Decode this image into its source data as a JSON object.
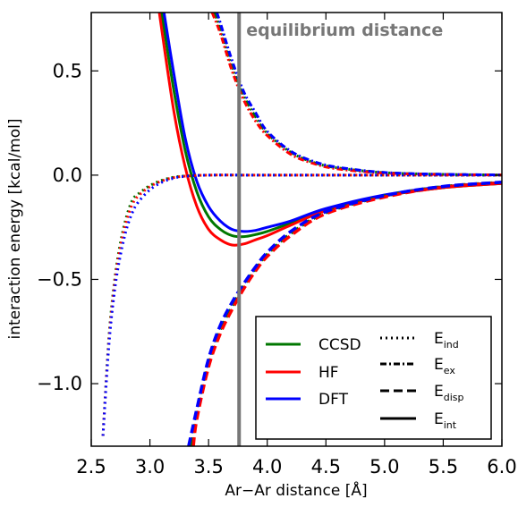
{
  "chart_data": {
    "type": "line",
    "title": "",
    "xlabel": "Ar−Ar distance  [Å]",
    "ylabel": "interaction energy  [kcal/mol]",
    "xlim": [
      2.5,
      6.0
    ],
    "ylim": [
      -1.3,
      0.78
    ],
    "xticks": [
      2.5,
      3.0,
      3.5,
      4.0,
      4.5,
      5.0,
      5.5,
      6.0
    ],
    "xtick_labels": [
      "2.5",
      "3.0",
      "3.5",
      "4.0",
      "4.5",
      "5.0",
      "5.5",
      "6.0"
    ],
    "yticks": [
      0.5,
      0.0,
      -0.5,
      -1.0
    ],
    "ytick_labels": [
      "0.5",
      "0.0",
      "−0.5",
      "−1.0"
    ],
    "grid": false,
    "legend_position": "bottom-right",
    "methods": [
      {
        "name": "CCSD",
        "color": "#007700"
      },
      {
        "name": "HF",
        "color": "#ff0000"
      },
      {
        "name": "DFT",
        "color": "#0000ff"
      }
    ],
    "components": [
      {
        "name": "E",
        "sub": "ind",
        "style": "dotted"
      },
      {
        "name": "E",
        "sub": "ex",
        "style": "dashdot"
      },
      {
        "name": "E",
        "sub": "disp",
        "style": "dashed"
      },
      {
        "name": "E",
        "sub": "int",
        "style": "solid"
      }
    ],
    "vline": {
      "x": 3.76,
      "label": "equilibrium distance",
      "color": "#777777"
    },
    "series": [
      {
        "method": "CCSD",
        "component": "int",
        "color": "#007700",
        "style": "solid",
        "x": [
          3.1,
          3.2,
          3.3,
          3.4,
          3.5,
          3.6,
          3.7,
          3.8,
          3.9,
          4.0,
          4.2,
          4.5,
          5.0,
          5.5,
          6.0
        ],
        "y": [
          0.78,
          0.42,
          0.12,
          -0.08,
          -0.2,
          -0.26,
          -0.29,
          -0.295,
          -0.285,
          -0.27,
          -0.23,
          -0.17,
          -0.1,
          -0.06,
          -0.04
        ]
      },
      {
        "method": "HF",
        "component": "int",
        "color": "#ff0000",
        "style": "solid",
        "x": [
          3.08,
          3.2,
          3.3,
          3.4,
          3.5,
          3.6,
          3.7,
          3.8,
          3.9,
          4.0,
          4.2,
          4.5,
          5.0,
          5.5,
          6.0
        ],
        "y": [
          0.78,
          0.32,
          0.04,
          -0.15,
          -0.26,
          -0.31,
          -0.335,
          -0.33,
          -0.31,
          -0.29,
          -0.24,
          -0.17,
          -0.1,
          -0.06,
          -0.04
        ]
      },
      {
        "method": "DFT",
        "component": "int",
        "color": "#0000ff",
        "style": "solid",
        "x": [
          3.12,
          3.2,
          3.3,
          3.4,
          3.5,
          3.6,
          3.7,
          3.8,
          3.9,
          4.0,
          4.2,
          4.5,
          5.0,
          5.5,
          6.0
        ],
        "y": [
          0.78,
          0.5,
          0.18,
          -0.03,
          -0.15,
          -0.22,
          -0.26,
          -0.27,
          -0.265,
          -0.25,
          -0.22,
          -0.16,
          -0.095,
          -0.055,
          -0.035
        ]
      },
      {
        "method": "CCSD",
        "component": "ind",
        "color": "#007700",
        "style": "dotted",
        "x": [
          2.6,
          2.65,
          2.7,
          2.75,
          2.8,
          2.85,
          2.9,
          3.0,
          3.1,
          3.2,
          3.3,
          3.5,
          4.0,
          5.0,
          6.0
        ],
        "y": [
          -1.25,
          -0.78,
          -0.5,
          -0.32,
          -0.2,
          -0.12,
          -0.09,
          -0.05,
          -0.025,
          -0.01,
          -0.004,
          0.0,
          0.0,
          0.0,
          0.0
        ]
      },
      {
        "method": "HF",
        "component": "ind",
        "color": "#ff0000",
        "style": "dotted",
        "x": [
          2.6,
          2.65,
          2.7,
          2.75,
          2.8,
          2.85,
          2.9,
          3.0,
          3.1,
          3.2,
          3.3,
          3.5,
          4.0,
          5.0,
          6.0
        ],
        "y": [
          -1.25,
          -0.8,
          -0.52,
          -0.34,
          -0.22,
          -0.14,
          -0.1,
          -0.055,
          -0.028,
          -0.012,
          -0.005,
          0.0,
          0.0,
          0.0,
          0.0
        ]
      },
      {
        "method": "DFT",
        "component": "ind",
        "color": "#0000ff",
        "style": "dotted",
        "x": [
          2.6,
          2.65,
          2.7,
          2.75,
          2.8,
          2.85,
          2.9,
          3.0,
          3.1,
          3.2,
          3.3,
          3.5,
          4.0,
          5.0,
          6.0
        ],
        "y": [
          -1.25,
          -0.82,
          -0.55,
          -0.38,
          -0.26,
          -0.18,
          -0.13,
          -0.07,
          -0.035,
          -0.015,
          -0.006,
          0.0,
          0.0,
          0.0,
          0.0
        ]
      },
      {
        "method": "CCSD",
        "component": "ex",
        "color": "#007700",
        "style": "dashdot",
        "x": [
          3.55,
          3.6,
          3.7,
          3.8,
          3.9,
          4.0,
          4.2,
          4.4,
          4.6,
          5.0,
          5.5,
          6.0
        ],
        "y": [
          0.78,
          0.7,
          0.52,
          0.38,
          0.28,
          0.2,
          0.11,
          0.06,
          0.035,
          0.012,
          0.004,
          0.001
        ]
      },
      {
        "method": "HF",
        "component": "ex",
        "color": "#ff0000",
        "style": "dashdot",
        "x": [
          3.53,
          3.6,
          3.7,
          3.8,
          3.9,
          4.0,
          4.2,
          4.4,
          4.6,
          5.0,
          5.5,
          6.0
        ],
        "y": [
          0.78,
          0.68,
          0.5,
          0.36,
          0.26,
          0.19,
          0.1,
          0.055,
          0.03,
          0.01,
          0.003,
          0.001
        ]
      },
      {
        "method": "DFT",
        "component": "ex",
        "color": "#0000ff",
        "style": "dashdot",
        "x": [
          3.57,
          3.6,
          3.7,
          3.8,
          3.9,
          4.0,
          4.2,
          4.4,
          4.6,
          5.0,
          5.5,
          6.0
        ],
        "y": [
          0.78,
          0.73,
          0.55,
          0.4,
          0.3,
          0.21,
          0.115,
          0.065,
          0.038,
          0.013,
          0.004,
          0.001
        ]
      },
      {
        "method": "CCSD",
        "component": "disp",
        "color": "#007700",
        "style": "dashed",
        "x": [
          3.35,
          3.4,
          3.5,
          3.6,
          3.7,
          3.8,
          3.9,
          4.0,
          4.2,
          4.5,
          5.0,
          5.5,
          6.0
        ],
        "y": [
          -1.3,
          -1.14,
          -0.9,
          -0.74,
          -0.63,
          -0.53,
          -0.45,
          -0.38,
          -0.28,
          -0.18,
          -0.1,
          -0.055,
          -0.035
        ]
      },
      {
        "method": "HF",
        "component": "disp",
        "color": "#ff0000",
        "style": "dashed",
        "x": [
          3.37,
          3.4,
          3.5,
          3.6,
          3.7,
          3.8,
          3.9,
          4.0,
          4.2,
          4.5,
          5.0,
          5.5,
          6.0
        ],
        "y": [
          -1.3,
          -1.17,
          -0.92,
          -0.76,
          -0.645,
          -0.545,
          -0.46,
          -0.39,
          -0.29,
          -0.185,
          -0.105,
          -0.058,
          -0.037
        ]
      },
      {
        "method": "DFT",
        "component": "disp",
        "color": "#0000ff",
        "style": "dashed",
        "x": [
          3.33,
          3.4,
          3.5,
          3.6,
          3.7,
          3.8,
          3.9,
          4.0,
          4.2,
          4.5,
          5.0,
          5.5,
          6.0
        ],
        "y": [
          -1.3,
          -1.12,
          -0.88,
          -0.72,
          -0.61,
          -0.52,
          -0.44,
          -0.37,
          -0.27,
          -0.175,
          -0.098,
          -0.054,
          -0.034
        ]
      }
    ]
  }
}
